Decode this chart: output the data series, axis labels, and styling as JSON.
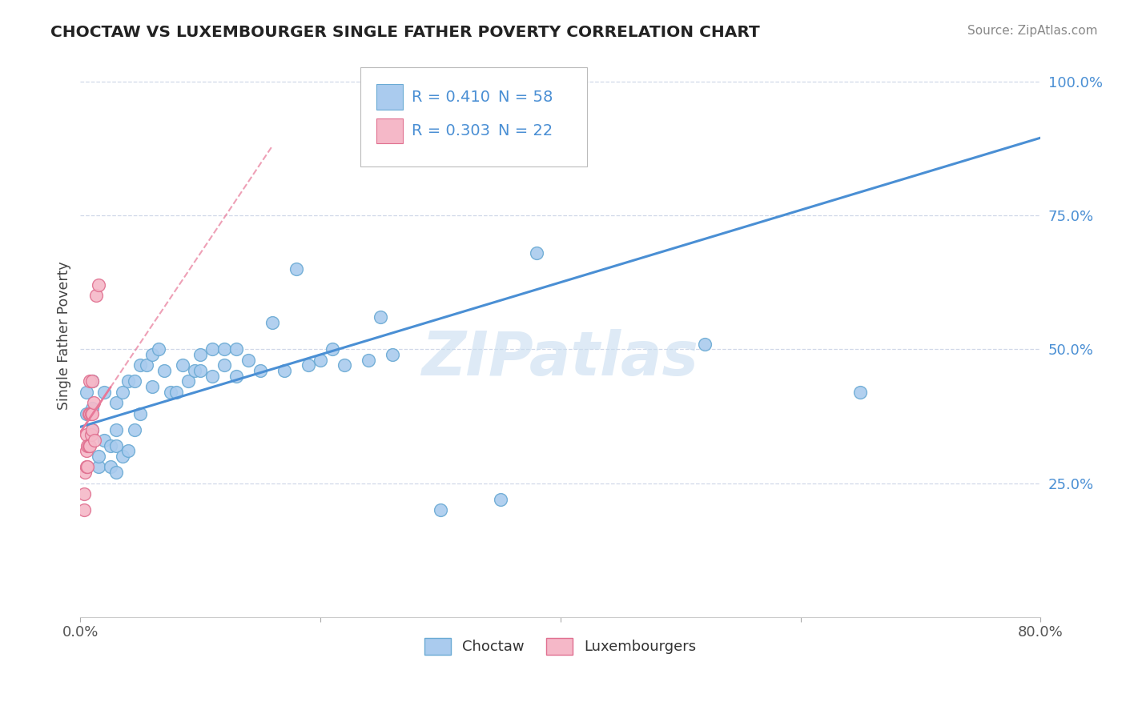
{
  "title": "CHOCTAW VS LUXEMBOURGER SINGLE FATHER POVERTY CORRELATION CHART",
  "source": "Source: ZipAtlas.com",
  "ylabel": "Single Father Poverty",
  "x_min": 0.0,
  "x_max": 0.8,
  "y_min": 0.0,
  "y_max": 1.05,
  "x_ticks": [
    0.0,
    0.2,
    0.4,
    0.6,
    0.8
  ],
  "x_tick_labels": [
    "0.0%",
    "",
    "",
    "",
    "80.0%"
  ],
  "y_ticks": [
    0.25,
    0.5,
    0.75,
    1.0
  ],
  "y_tick_labels": [
    "25.0%",
    "50.0%",
    "75.0%",
    "100.0%"
  ],
  "legend_labels": [
    "Choctaw",
    "Luxembourgers"
  ],
  "R_choctaw": 0.41,
  "N_choctaw": 58,
  "R_lux": 0.303,
  "N_lux": 22,
  "choctaw_color": "#aacbee",
  "choctaw_edge": "#6aaad4",
  "lux_color": "#f5b8c8",
  "lux_edge": "#e07090",
  "choctaw_line_color": "#4a8fd4",
  "lux_line_color": "#e87898",
  "tick_label_color": "#4a8fd4",
  "watermark_color": "#c8ddf0",
  "grid_color": "#d0d8e8",
  "background_color": "#ffffff",
  "choctaw_x": [
    0.005,
    0.005,
    0.01,
    0.01,
    0.01,
    0.015,
    0.015,
    0.02,
    0.02,
    0.025,
    0.025,
    0.03,
    0.03,
    0.03,
    0.03,
    0.035,
    0.035,
    0.04,
    0.04,
    0.045,
    0.045,
    0.05,
    0.05,
    0.055,
    0.06,
    0.06,
    0.065,
    0.07,
    0.075,
    0.08,
    0.085,
    0.09,
    0.095,
    0.1,
    0.1,
    0.11,
    0.11,
    0.12,
    0.12,
    0.13,
    0.13,
    0.14,
    0.15,
    0.16,
    0.17,
    0.18,
    0.19,
    0.2,
    0.21,
    0.22,
    0.24,
    0.25,
    0.26,
    0.3,
    0.35,
    0.38,
    0.52,
    0.65
  ],
  "choctaw_y": [
    0.38,
    0.42,
    0.35,
    0.39,
    0.44,
    0.28,
    0.3,
    0.33,
    0.42,
    0.28,
    0.32,
    0.27,
    0.32,
    0.35,
    0.4,
    0.3,
    0.42,
    0.31,
    0.44,
    0.35,
    0.44,
    0.38,
    0.47,
    0.47,
    0.43,
    0.49,
    0.5,
    0.46,
    0.42,
    0.42,
    0.47,
    0.44,
    0.46,
    0.46,
    0.49,
    0.45,
    0.5,
    0.47,
    0.5,
    0.45,
    0.5,
    0.48,
    0.46,
    0.55,
    0.46,
    0.65,
    0.47,
    0.48,
    0.5,
    0.47,
    0.48,
    0.56,
    0.49,
    0.2,
    0.22,
    0.68,
    0.51,
    0.42
  ],
  "lux_x": [
    0.003,
    0.003,
    0.004,
    0.005,
    0.005,
    0.005,
    0.006,
    0.006,
    0.007,
    0.007,
    0.008,
    0.008,
    0.008,
    0.009,
    0.009,
    0.01,
    0.01,
    0.01,
    0.011,
    0.012,
    0.013,
    0.015
  ],
  "lux_y": [
    0.2,
    0.23,
    0.27,
    0.28,
    0.31,
    0.34,
    0.28,
    0.32,
    0.32,
    0.38,
    0.32,
    0.38,
    0.44,
    0.34,
    0.38,
    0.35,
    0.38,
    0.44,
    0.4,
    0.33,
    0.6,
    0.62
  ],
  "choctaw_trendline_x0": 0.0,
  "choctaw_trendline_x1": 0.8,
  "choctaw_trendline_y0": 0.355,
  "choctaw_trendline_y1": 0.895,
  "lux_trendline_x0": 0.0,
  "lux_trendline_x1": 0.16,
  "lux_trendline_y0": 0.345,
  "lux_trendline_y1": 0.88
}
